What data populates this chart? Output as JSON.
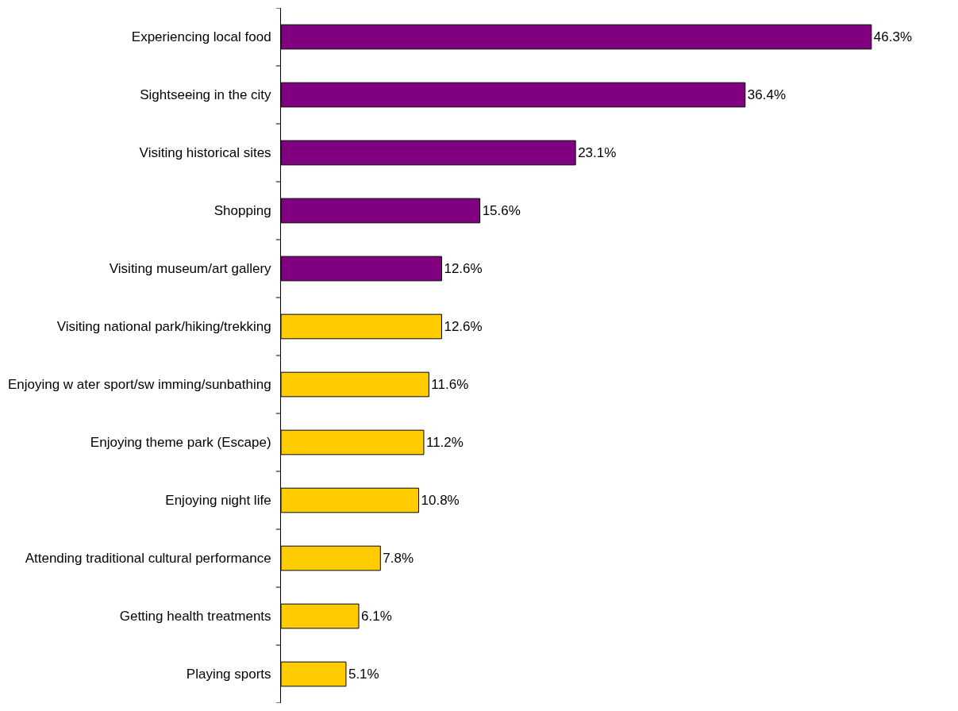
{
  "chart_data": {
    "type": "bar",
    "orientation": "horizontal",
    "categories": [
      "Experiencing local food",
      "Sightseeing in the city",
      "Visiting historical sites",
      "Shopping",
      "Visiting museum/art gallery",
      "Visiting national park/hiking/trekking",
      "Enjoying w ater sport/sw imming/sunbathing",
      "Enjoying theme park (Escape)",
      "Enjoying night life",
      "Attending traditional cultural performance",
      "Getting health treatments",
      "Playing sports"
    ],
    "values": [
      46.3,
      36.4,
      23.1,
      15.6,
      12.6,
      12.6,
      11.6,
      11.2,
      10.8,
      7.8,
      6.1,
      5.1
    ],
    "value_labels": [
      "46.3%",
      "36.4%",
      "23.1%",
      "15.6%",
      "12.6%",
      "12.6%",
      "11.6%",
      "11.2%",
      "10.8%",
      "7.8%",
      "6.1%",
      "5.1%"
    ],
    "colors": [
      "#800080",
      "#800080",
      "#800080",
      "#800080",
      "#800080",
      "#ffcc00",
      "#ffcc00",
      "#ffcc00",
      "#ffcc00",
      "#ffcc00",
      "#ffcc00",
      "#ffcc00"
    ],
    "legend": false
  }
}
